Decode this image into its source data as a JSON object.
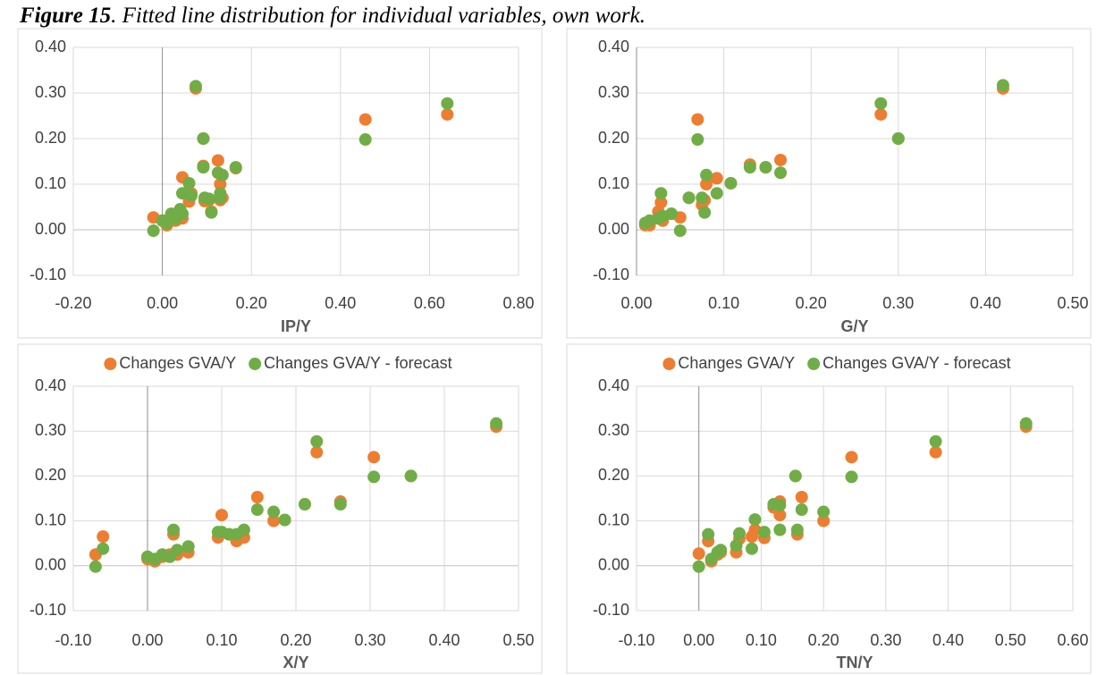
{
  "figure_label": "Figure 15",
  "figure_caption": ". Fitted line distribution for individual variables, own work.",
  "chart_data": [
    {
      "type": "scatter",
      "xlabel": "IP/Y",
      "grid": true,
      "xlim": [
        -0.2,
        0.8
      ],
      "xticks": [
        {
          "value": -0.2,
          "label": "-0.20"
        },
        {
          "value": 0,
          "label": "0.00"
        },
        {
          "value": 0.2,
          "label": "0.20"
        },
        {
          "value": 0.4,
          "label": "0.40"
        },
        {
          "value": 0.6,
          "label": "0.60"
        },
        {
          "value": 0.8,
          "label": "0.80"
        }
      ],
      "ylim": [
        -0.1,
        0.4
      ],
      "yticks": [
        {
          "value": -0.1,
          "label": "-0.10"
        },
        {
          "value": 0,
          "label": "0.00"
        },
        {
          "value": 0.1,
          "label": "0.10"
        },
        {
          "value": 0.2,
          "label": "0.20"
        },
        {
          "value": 0.3,
          "label": "0.30"
        },
        {
          "value": 0.4,
          "label": "0.40"
        }
      ],
      "series": [
        {
          "color": "#ed7d31",
          "x": [
            -0.02,
            0.0,
            0.01,
            0.02,
            0.03,
            0.04,
            0.045,
            0.045,
            0.06,
            0.065,
            0.075,
            0.092,
            0.092,
            0.095,
            0.105,
            0.11,
            0.125,
            0.13,
            0.13,
            0.135,
            0.165,
            0.456,
            0.64
          ],
          "values": [
            0.027,
            0.02,
            0.01,
            0.02,
            0.02,
            0.03,
            0.115,
            0.025,
            0.062,
            0.08,
            0.31,
            0.14,
            0.2,
            0.063,
            0.065,
            0.04,
            0.152,
            0.1,
            0.065,
            0.07,
            0.135,
            0.242,
            0.253
          ]
        },
        {
          "color": "#70ad47",
          "x": [
            -0.02,
            0.0,
            0.01,
            0.02,
            0.03,
            0.04,
            0.045,
            0.045,
            0.06,
            0.065,
            0.075,
            0.092,
            0.092,
            0.095,
            0.105,
            0.11,
            0.125,
            0.13,
            0.13,
            0.135,
            0.165,
            0.456,
            0.64
          ],
          "values": [
            -0.002,
            0.02,
            0.015,
            0.035,
            0.025,
            0.045,
            0.08,
            0.035,
            0.102,
            0.075,
            0.315,
            0.137,
            0.2,
            0.07,
            0.068,
            0.038,
            0.125,
            0.08,
            0.07,
            0.12,
            0.137,
            0.198,
            0.277
          ]
        }
      ]
    },
    {
      "type": "scatter",
      "xlabel": "G/Y",
      "grid": true,
      "xlim": [
        0,
        0.5
      ],
      "xticks": [
        {
          "value": 0,
          "label": "0.00"
        },
        {
          "value": 0.1,
          "label": "0.10"
        },
        {
          "value": 0.2,
          "label": "0.20"
        },
        {
          "value": 0.3,
          "label": "0.30"
        },
        {
          "value": 0.4,
          "label": "0.40"
        },
        {
          "value": 0.5,
          "label": "0.50"
        }
      ],
      "ylim": [
        -0.1,
        0.4
      ],
      "yticks": [
        {
          "value": -0.1,
          "label": "-0.10"
        },
        {
          "value": 0,
          "label": "0.00"
        },
        {
          "value": 0.1,
          "label": "0.10"
        },
        {
          "value": 0.2,
          "label": "0.20"
        },
        {
          "value": 0.3,
          "label": "0.30"
        },
        {
          "value": 0.4,
          "label": "0.40"
        }
      ],
      "series": [
        {
          "color": "#ed7d31",
          "x": [
            0.01,
            0.015,
            0.025,
            0.028,
            0.03,
            0.04,
            0.05,
            0.06,
            0.07,
            0.075,
            0.078,
            0.08,
            0.092,
            0.108,
            0.13,
            0.148,
            0.165,
            0.28,
            0.3,
            0.42
          ],
          "values": [
            0.01,
            0.01,
            0.04,
            0.06,
            0.02,
            0.035,
            0.027,
            0.07,
            0.242,
            0.055,
            0.065,
            0.1,
            0.113,
            0.102,
            0.143,
            0.137,
            0.153,
            0.253,
            0.2,
            0.31
          ]
        },
        {
          "color": "#70ad47",
          "x": [
            0.01,
            0.015,
            0.025,
            0.028,
            0.03,
            0.04,
            0.05,
            0.06,
            0.07,
            0.075,
            0.078,
            0.08,
            0.092,
            0.108,
            0.13,
            0.148,
            0.165,
            0.28,
            0.3,
            0.42
          ],
          "values": [
            0.015,
            0.02,
            0.025,
            0.08,
            0.03,
            0.035,
            -0.002,
            0.07,
            0.198,
            0.07,
            0.038,
            0.12,
            0.08,
            0.102,
            0.137,
            0.137,
            0.125,
            0.277,
            0.2,
            0.317
          ]
        }
      ]
    },
    {
      "type": "scatter",
      "xlabel": "X/Y",
      "grid": true,
      "legend": "top",
      "xlim": [
        -0.1,
        0.5
      ],
      "xticks": [
        {
          "value": -0.1,
          "label": "-0.10"
        },
        {
          "value": 0,
          "label": "0.00"
        },
        {
          "value": 0.1,
          "label": "0.10"
        },
        {
          "value": 0.2,
          "label": "0.20"
        },
        {
          "value": 0.3,
          "label": "0.30"
        },
        {
          "value": 0.4,
          "label": "0.40"
        },
        {
          "value": 0.5,
          "label": "0.50"
        }
      ],
      "ylim": [
        -0.1,
        0.4
      ],
      "yticks": [
        {
          "value": -0.1,
          "label": "-0.10"
        },
        {
          "value": 0,
          "label": "0.00"
        },
        {
          "value": 0.1,
          "label": "0.10"
        },
        {
          "value": 0.2,
          "label": "0.20"
        },
        {
          "value": 0.3,
          "label": "0.30"
        },
        {
          "value": 0.4,
          "label": "0.40"
        }
      ],
      "series": [
        {
          "name": "Changes GVA/Y",
          "color": "#ed7d31",
          "x": [
            -0.07,
            -0.06,
            0.0,
            0.01,
            0.02,
            0.03,
            0.035,
            0.04,
            0.055,
            0.095,
            0.1,
            0.11,
            0.12,
            0.13,
            0.148,
            0.17,
            0.185,
            0.212,
            0.228,
            0.26,
            0.305,
            0.355,
            0.47
          ],
          "values": [
            0.025,
            0.065,
            0.015,
            0.01,
            0.02,
            0.025,
            0.07,
            0.025,
            0.03,
            0.063,
            0.113,
            0.07,
            0.055,
            0.063,
            0.153,
            0.1,
            0.102,
            0.137,
            0.253,
            0.143,
            0.242,
            0.2,
            0.31
          ]
        },
        {
          "name": "Changes GVA/Y - forecast",
          "color": "#70ad47",
          "x": [
            -0.07,
            -0.06,
            0.0,
            0.01,
            0.02,
            0.03,
            0.035,
            0.04,
            0.055,
            0.095,
            0.1,
            0.11,
            0.12,
            0.13,
            0.148,
            0.17,
            0.185,
            0.212,
            0.228,
            0.26,
            0.305,
            0.355,
            0.47
          ],
          "values": [
            -0.002,
            0.038,
            0.02,
            0.015,
            0.025,
            0.02,
            0.08,
            0.035,
            0.043,
            0.075,
            0.075,
            0.07,
            0.07,
            0.08,
            0.125,
            0.12,
            0.102,
            0.137,
            0.277,
            0.137,
            0.198,
            0.2,
            0.317
          ]
        }
      ]
    },
    {
      "type": "scatter",
      "xlabel": "TN/Y",
      "grid": true,
      "legend": "top",
      "xlim": [
        -0.1,
        0.6
      ],
      "xticks": [
        {
          "value": -0.1,
          "label": "-0.10"
        },
        {
          "value": 0,
          "label": "0.00"
        },
        {
          "value": 0.1,
          "label": "0.10"
        },
        {
          "value": 0.2,
          "label": "0.20"
        },
        {
          "value": 0.3,
          "label": "0.30"
        },
        {
          "value": 0.4,
          "label": "0.40"
        },
        {
          "value": 0.5,
          "label": "0.50"
        },
        {
          "value": 0.6,
          "label": "0.60"
        }
      ],
      "ylim": [
        -0.1,
        0.4
      ],
      "yticks": [
        {
          "value": -0.1,
          "label": "-0.10"
        },
        {
          "value": 0,
          "label": "0.00"
        },
        {
          "value": 0.1,
          "label": "0.10"
        },
        {
          "value": 0.2,
          "label": "0.20"
        },
        {
          "value": 0.3,
          "label": "0.30"
        },
        {
          "value": 0.4,
          "label": "0.40"
        }
      ],
      "series": [
        {
          "name": "Changes GVA/Y",
          "color": "#ed7d31",
          "x": [
            0.0,
            0.015,
            0.02,
            0.03,
            0.035,
            0.06,
            0.065,
            0.085,
            0.09,
            0.105,
            0.12,
            0.13,
            0.13,
            0.155,
            0.158,
            0.165,
            0.2,
            0.245,
            0.38,
            0.525
          ],
          "values": [
            0.027,
            0.055,
            0.01,
            0.025,
            0.03,
            0.03,
            0.06,
            0.065,
            0.08,
            0.062,
            0.13,
            0.143,
            0.113,
            0.2,
            0.07,
            0.153,
            0.1,
            0.242,
            0.253,
            0.31
          ]
        },
        {
          "name": "Changes GVA/Y - forecast",
          "color": "#70ad47",
          "x": [
            0.0,
            0.015,
            0.02,
            0.03,
            0.035,
            0.06,
            0.065,
            0.085,
            0.09,
            0.105,
            0.12,
            0.13,
            0.13,
            0.155,
            0.158,
            0.165,
            0.2,
            0.245,
            0.38,
            0.525
          ],
          "values": [
            -0.002,
            0.07,
            0.015,
            0.03,
            0.035,
            0.045,
            0.072,
            0.038,
            0.103,
            0.075,
            0.137,
            0.135,
            0.08,
            0.2,
            0.08,
            0.125,
            0.12,
            0.198,
            0.277,
            0.317
          ]
        }
      ]
    }
  ]
}
